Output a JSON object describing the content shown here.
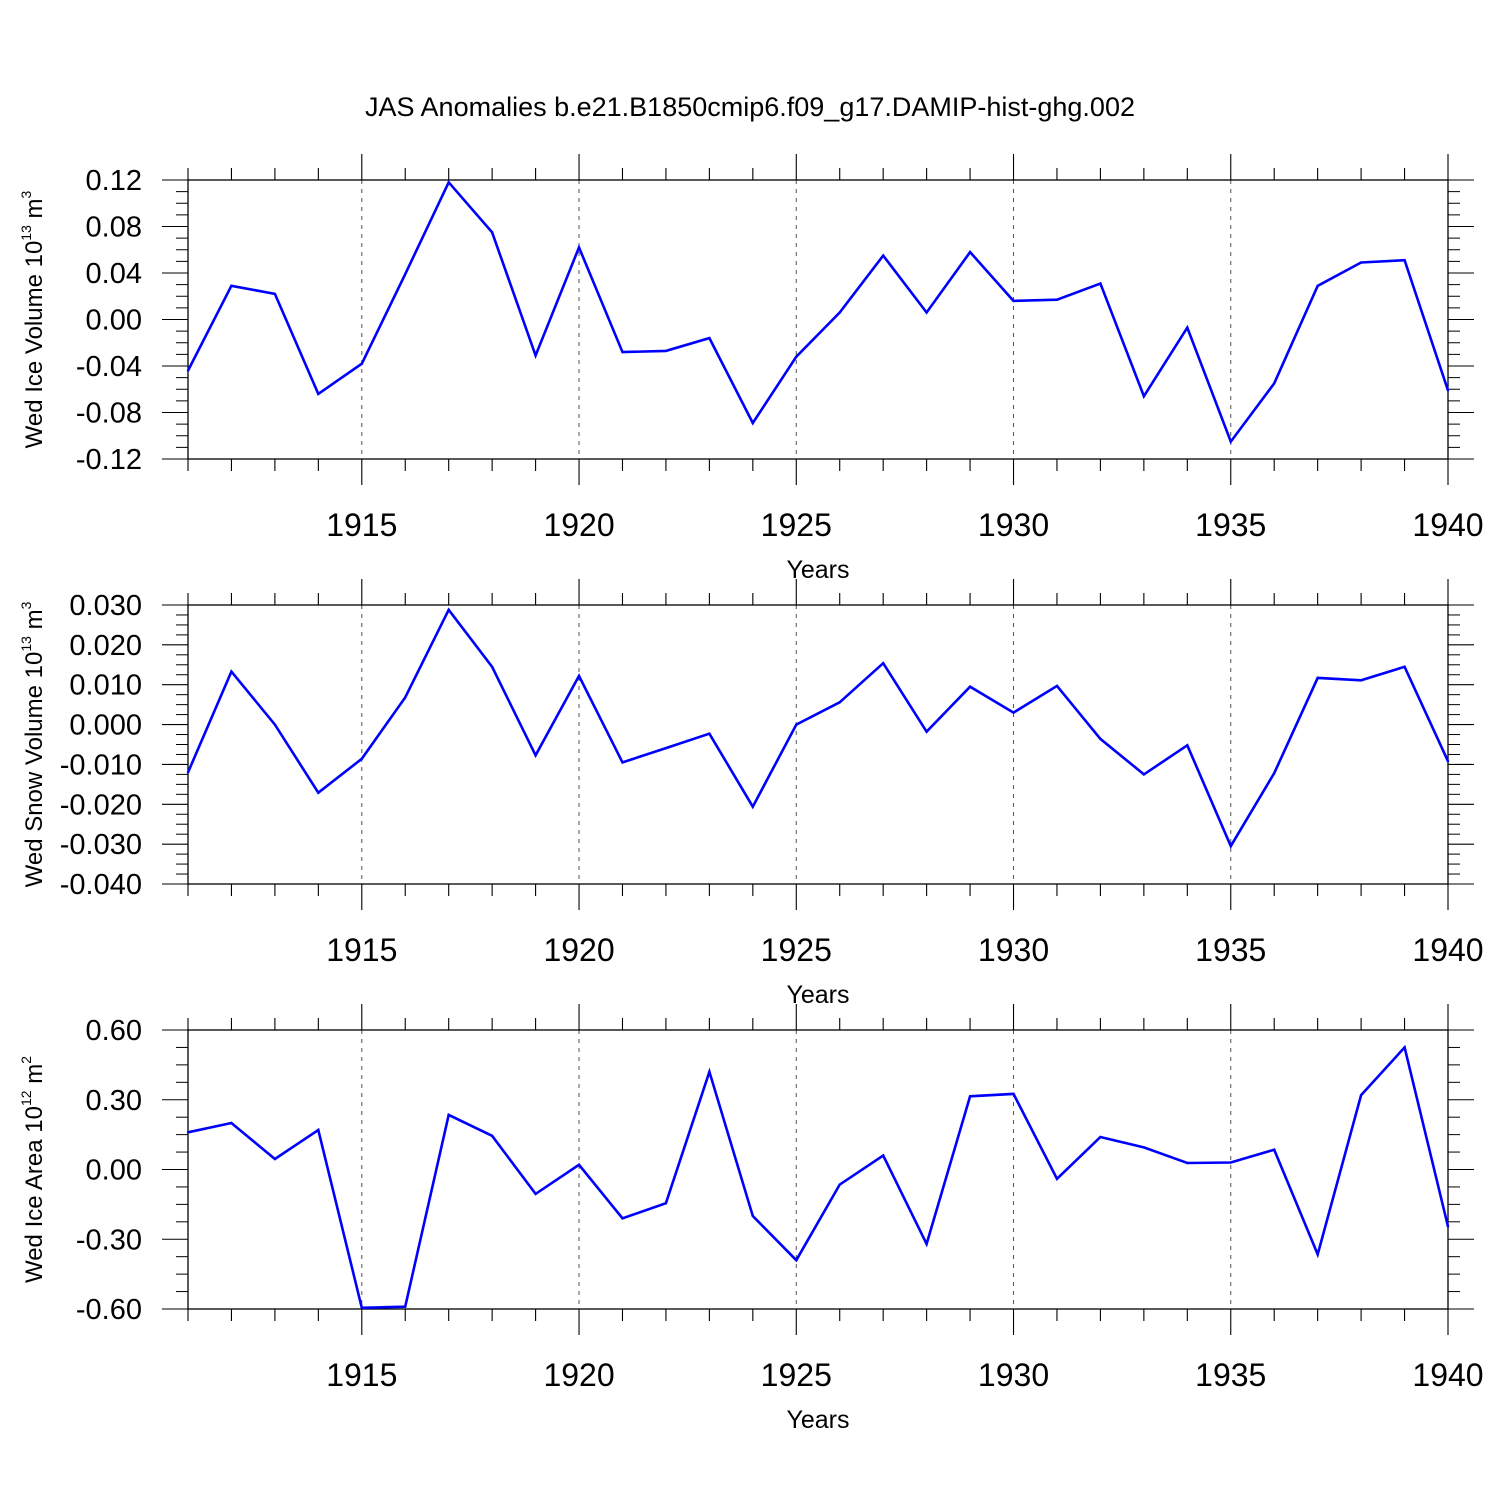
{
  "title": "JAS Anomalies b.e21.B1850cmip6.f09_g17.DAMIP-hist-ghg.002",
  "colors": {
    "line": "#0000ff",
    "axes": "#000000",
    "grid": "#555555"
  },
  "chart_data": [
    {
      "type": "line",
      "ylabel": {
        "main": "Wed Ice Volume 10",
        "exp": "13",
        "unit": " m",
        "unit_exp": "3"
      },
      "xlabel": "Years",
      "xlim": [
        1911,
        1940
      ],
      "ylim": [
        -0.12,
        0.12
      ],
      "yticks": [
        0.12,
        0.08,
        0.04,
        0.0,
        -0.04,
        -0.08,
        -0.12
      ],
      "ytick_labels": [
        "0.12",
        "0.08",
        "0.04",
        "0.00",
        "-0.04",
        "-0.08",
        "-0.12"
      ],
      "xticks": [
        1915,
        1920,
        1925,
        1930,
        1935,
        1940
      ],
      "xtick_labels": [
        "1915",
        "1920",
        "1925",
        "1930",
        "1935",
        "1940"
      ],
      "x": [
        1911,
        1912,
        1913,
        1914,
        1915,
        1916,
        1917,
        1918,
        1919,
        1920,
        1921,
        1922,
        1923,
        1924,
        1925,
        1926,
        1927,
        1928,
        1929,
        1930,
        1931,
        1932,
        1933,
        1934,
        1935,
        1936,
        1937,
        1938,
        1939,
        1940
      ],
      "values": [
        -0.044,
        0.029,
        0.022,
        -0.064,
        -0.038,
        0.039,
        0.118,
        0.075,
        -0.031,
        0.062,
        -0.028,
        -0.027,
        -0.016,
        -0.089,
        -0.032,
        0.006,
        0.055,
        0.006,
        0.058,
        0.016,
        0.017,
        0.031,
        -0.066,
        -0.007,
        -0.105,
        -0.055,
        0.029,
        0.049,
        0.051,
        -0.061
      ]
    },
    {
      "type": "line",
      "ylabel": {
        "main": "Wed Snow Volume 10",
        "exp": "13",
        "unit": " m",
        "unit_exp": "3"
      },
      "xlabel": "Years",
      "xlim": [
        1911,
        1940
      ],
      "ylim": [
        -0.04,
        0.03
      ],
      "yticks": [
        0.03,
        0.02,
        0.01,
        0.0,
        -0.01,
        -0.02,
        -0.03,
        -0.04
      ],
      "ytick_labels": [
        "0.030",
        "0.020",
        "0.010",
        "0.000",
        "-0.010",
        "-0.020",
        "-0.030",
        "-0.040"
      ],
      "xticks": [
        1915,
        1920,
        1925,
        1930,
        1935,
        1940
      ],
      "xtick_labels": [
        "1915",
        "1920",
        "1925",
        "1930",
        "1935",
        "1940"
      ],
      "x": [
        1911,
        1912,
        1913,
        1914,
        1915,
        1916,
        1917,
        1918,
        1919,
        1920,
        1921,
        1922,
        1923,
        1924,
        1925,
        1926,
        1927,
        1928,
        1929,
        1930,
        1931,
        1932,
        1933,
        1934,
        1935,
        1936,
        1937,
        1938,
        1939,
        1940
      ],
      "values": [
        -0.012,
        0.0133,
        0.0,
        -0.0171,
        -0.0086,
        0.0068,
        0.0288,
        0.0145,
        -0.0077,
        0.0122,
        -0.0095,
        -0.0059,
        -0.0023,
        -0.0206,
        0.0,
        0.0056,
        0.0154,
        -0.0018,
        0.0095,
        0.003,
        0.0097,
        -0.0036,
        -0.0125,
        -0.0052,
        -0.0305,
        -0.0122,
        0.0117,
        0.0111,
        0.0145,
        -0.0092
      ]
    },
    {
      "type": "line",
      "ylabel": {
        "main": "Wed Ice Area 10",
        "exp": "12",
        "unit": " m",
        "unit_exp": "2"
      },
      "xlabel": "Years",
      "xlim": [
        1911,
        1940
      ],
      "ylim": [
        -0.6,
        0.6
      ],
      "yticks": [
        0.6,
        0.3,
        0.0,
        -0.3,
        -0.6
      ],
      "ytick_labels": [
        "0.60",
        "0.30",
        "0.00",
        "-0.30",
        "-0.60"
      ],
      "xticks": [
        1915,
        1920,
        1925,
        1930,
        1935,
        1940
      ],
      "xtick_labels": [
        "1915",
        "1920",
        "1925",
        "1930",
        "1935",
        "1940"
      ],
      "x": [
        1911,
        1912,
        1913,
        1914,
        1915,
        1916,
        1917,
        1918,
        1919,
        1920,
        1921,
        1922,
        1923,
        1924,
        1925,
        1926,
        1927,
        1928,
        1929,
        1930,
        1931,
        1932,
        1933,
        1934,
        1935,
        1936,
        1937,
        1938,
        1939,
        1940
      ],
      "values": [
        0.16,
        0.2,
        0.045,
        0.17,
        -0.595,
        -0.59,
        0.235,
        0.145,
        -0.105,
        0.02,
        -0.21,
        -0.145,
        0.42,
        -0.2,
        -0.39,
        -0.065,
        0.06,
        -0.32,
        0.315,
        0.325,
        -0.04,
        0.14,
        0.095,
        0.028,
        0.03,
        0.085,
        -0.365,
        0.32,
        0.525,
        -0.245
      ]
    }
  ]
}
